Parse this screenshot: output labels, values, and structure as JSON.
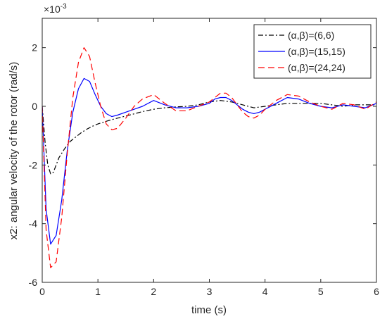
{
  "chart_data": {
    "type": "line",
    "xlabel": "time (s)",
    "ylabel": "x2: angular velocity of the rotor (rad/s)",
    "y_multiplier_label": "×10",
    "y_multiplier_exponent": "-3",
    "xlim": [
      0,
      6
    ],
    "ylim": [
      -6,
      3
    ],
    "xticks": [
      "0",
      "1",
      "2",
      "3",
      "4",
      "5",
      "6"
    ],
    "yticks": [
      "-6",
      "-4",
      "-2",
      "0",
      "2"
    ],
    "grid": false,
    "legend_position": "top-right",
    "series": [
      {
        "name": "(α,β)=(6,6)",
        "color": "#000000",
        "dash": "dash-dot",
        "x": [
          0,
          0.05,
          0.1,
          0.15,
          0.2,
          0.25,
          0.3,
          0.4,
          0.5,
          0.6,
          0.7,
          0.8,
          0.9,
          1.0,
          1.2,
          1.4,
          1.6,
          1.8,
          2.0,
          2.2,
          2.4,
          2.6,
          2.8,
          3.0,
          3.2,
          3.4,
          3.6,
          3.8,
          4.0,
          4.2,
          4.4,
          4.6,
          4.8,
          5.0,
          5.2,
          5.4,
          5.6,
          5.8,
          6.0
        ],
        "y": [
          0,
          -1.2,
          -2.0,
          -2.3,
          -2.25,
          -2.0,
          -1.75,
          -1.45,
          -1.2,
          -1.05,
          -0.9,
          -0.78,
          -0.68,
          -0.6,
          -0.48,
          -0.38,
          -0.28,
          -0.18,
          -0.1,
          -0.05,
          -0.02,
          0.0,
          0.05,
          0.15,
          0.2,
          0.15,
          0.05,
          -0.05,
          0.0,
          0.05,
          0.1,
          0.1,
          0.1,
          0.1,
          0.05,
          0.0,
          0.05,
          0.05,
          0.05
        ]
      },
      {
        "name": "(α,β)=(15,15)",
        "color": "#0000ff",
        "dash": "solid",
        "x": [
          0,
          0.07,
          0.15,
          0.25,
          0.35,
          0.45,
          0.55,
          0.65,
          0.75,
          0.85,
          0.95,
          1.05,
          1.15,
          1.25,
          1.35,
          1.5,
          1.65,
          1.8,
          2.0,
          2.2,
          2.4,
          2.6,
          2.8,
          3.0,
          3.1,
          3.2,
          3.3,
          3.4,
          3.6,
          3.7,
          3.8,
          3.9,
          4.0,
          4.2,
          4.4,
          4.6,
          4.8,
          5.0,
          5.2,
          5.4,
          5.6,
          5.8,
          6.0
        ],
        "y": [
          0,
          -3.5,
          -4.7,
          -4.4,
          -3.2,
          -1.5,
          -0.2,
          0.6,
          0.95,
          0.85,
          0.4,
          0.0,
          -0.25,
          -0.35,
          -0.3,
          -0.2,
          -0.1,
          0.0,
          0.2,
          0.05,
          -0.05,
          -0.05,
          0.0,
          0.1,
          0.25,
          0.3,
          0.3,
          0.2,
          -0.1,
          -0.2,
          -0.25,
          -0.2,
          -0.1,
          0.1,
          0.3,
          0.25,
          0.1,
          0.0,
          -0.05,
          0.05,
          0.0,
          -0.05,
          0.1
        ]
      },
      {
        "name": "(α,β)=(24,24)",
        "color": "#ff0000",
        "dash": "dashed",
        "x": [
          0,
          0.07,
          0.15,
          0.25,
          0.35,
          0.45,
          0.55,
          0.65,
          0.75,
          0.85,
          0.95,
          1.05,
          1.15,
          1.25,
          1.35,
          1.5,
          1.65,
          1.8,
          2.0,
          2.2,
          2.4,
          2.6,
          2.8,
          3.0,
          3.1,
          3.2,
          3.3,
          3.4,
          3.6,
          3.7,
          3.8,
          3.9,
          4.0,
          4.2,
          4.4,
          4.6,
          4.8,
          5.0,
          5.2,
          5.4,
          5.6,
          5.8,
          6.0
        ],
        "y": [
          0,
          -4.2,
          -5.5,
          -5.3,
          -3.8,
          -1.6,
          0.3,
          1.5,
          2.0,
          1.7,
          0.8,
          0.0,
          -0.6,
          -0.8,
          -0.75,
          -0.4,
          0.0,
          0.25,
          0.4,
          0.1,
          -0.15,
          -0.15,
          0.0,
          0.15,
          0.3,
          0.45,
          0.45,
          0.3,
          -0.2,
          -0.35,
          -0.4,
          -0.3,
          -0.1,
          0.2,
          0.4,
          0.35,
          0.15,
          0.0,
          -0.1,
          0.1,
          0.05,
          -0.1,
          0.15
        ]
      }
    ]
  }
}
